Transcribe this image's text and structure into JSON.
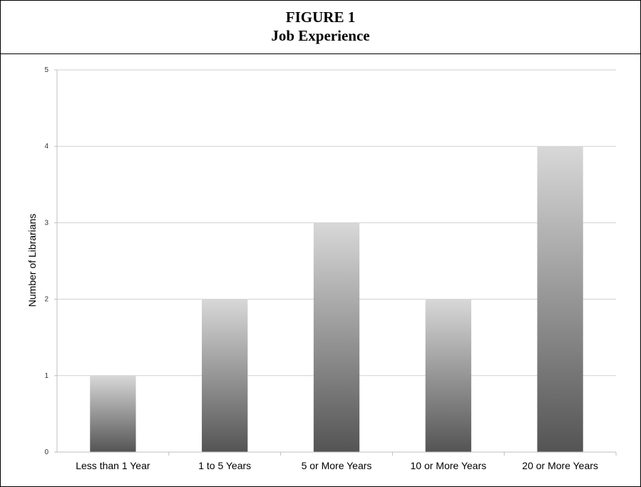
{
  "figure": {
    "number_label": "FIGURE 1",
    "title": "Job Experience"
  },
  "chart_data": {
    "type": "bar",
    "categories": [
      "Less than 1 Year",
      "1 to 5 Years",
      "5 or More Years",
      "10 or More Years",
      "20 or More Years"
    ],
    "values": [
      1,
      2,
      3,
      2,
      4
    ],
    "xlabel": "",
    "ylabel": "Number of Librarians",
    "ylim": [
      0,
      5
    ],
    "yticks": [
      0,
      1,
      2,
      3,
      4,
      5
    ],
    "grid": true,
    "legend": "none",
    "colors": {
      "bar_top": "#d8d8d8",
      "bar_bottom": "#545454",
      "grid": "#d0d0d0",
      "axis": "#bfbfbf"
    }
  }
}
